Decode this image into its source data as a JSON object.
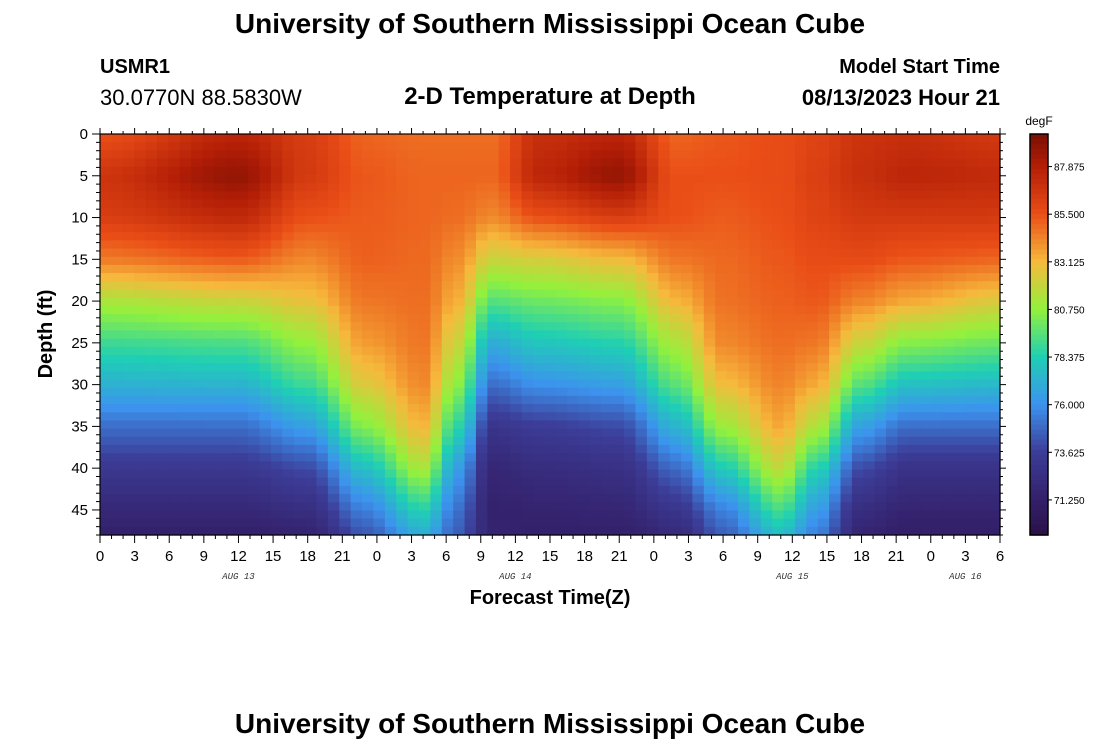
{
  "header": {
    "title": "University of Southern Mississippi Ocean Cube",
    "station_id": "USMR1",
    "station_coords": "30.0770N  88.5830W",
    "chart_title": "2-D Temperature at Depth",
    "start_label": "Model Start Time",
    "start_value": "08/13/2023 Hour 21"
  },
  "footer": {
    "title": "University of Southern Mississippi Ocean Cube"
  },
  "chart_data": {
    "type": "heatmap",
    "title": "2-D Temperature at Depth",
    "xlabel": "Forecast Time(Z)",
    "ylabel": "Depth (ft)",
    "x_hours_range": [
      0,
      78
    ],
    "x_ticks": [
      {
        "hour": 0,
        "label": "0"
      },
      {
        "hour": 3,
        "label": "3"
      },
      {
        "hour": 6,
        "label": "6"
      },
      {
        "hour": 9,
        "label": "9"
      },
      {
        "hour": 12,
        "label": "12"
      },
      {
        "hour": 15,
        "label": "15"
      },
      {
        "hour": 18,
        "label": "18"
      },
      {
        "hour": 21,
        "label": "21"
      },
      {
        "hour": 24,
        "label": "0"
      },
      {
        "hour": 27,
        "label": "3"
      },
      {
        "hour": 30,
        "label": "6"
      },
      {
        "hour": 33,
        "label": "9"
      },
      {
        "hour": 36,
        "label": "12"
      },
      {
        "hour": 39,
        "label": "15"
      },
      {
        "hour": 42,
        "label": "18"
      },
      {
        "hour": 45,
        "label": "21"
      },
      {
        "hour": 48,
        "label": "0"
      },
      {
        "hour": 51,
        "label": "3"
      },
      {
        "hour": 54,
        "label": "6"
      },
      {
        "hour": 57,
        "label": "9"
      },
      {
        "hour": 60,
        "label": "12"
      },
      {
        "hour": 63,
        "label": "15"
      },
      {
        "hour": 66,
        "label": "18"
      },
      {
        "hour": 69,
        "label": "21"
      },
      {
        "hour": 72,
        "label": "0"
      },
      {
        "hour": 75,
        "label": "3"
      },
      {
        "hour": 78,
        "label": "6"
      }
    ],
    "date_labels": [
      {
        "hour": 12,
        "label": "AUG 13"
      },
      {
        "hour": 36,
        "label": "AUG 14"
      },
      {
        "hour": 60,
        "label": "AUG 15"
      },
      {
        "hour": 75,
        "label": "AUG 16"
      }
    ],
    "y_depth_range": [
      0,
      48
    ],
    "y_ticks": [
      0,
      5,
      10,
      15,
      20,
      25,
      30,
      35,
      40,
      45
    ],
    "colorbar": {
      "unit": "degF",
      "range": [
        69.5,
        89.5
      ],
      "tick_values": [
        71.25,
        73.625,
        76.0,
        78.375,
        80.75,
        83.125,
        85.5,
        87.875
      ],
      "tick_labels": [
        "71.250",
        "73.625",
        "76.000",
        "78.375",
        "80.750",
        "83.125",
        "85.500",
        "87.875"
      ],
      "color_stops": [
        {
          "value": 69.5,
          "color": "#2a1248"
        },
        {
          "value": 71.25,
          "color": "#34206a"
        },
        {
          "value": 73.625,
          "color": "#3c3d98"
        },
        {
          "value": 76.0,
          "color": "#3c93ee"
        },
        {
          "value": 78.375,
          "color": "#1fcfb4"
        },
        {
          "value": 80.75,
          "color": "#93f13c"
        },
        {
          "value": 83.125,
          "color": "#f6b93c"
        },
        {
          "value": 85.5,
          "color": "#ea4e17"
        },
        {
          "value": 87.875,
          "color": "#b31e06"
        },
        {
          "value": 89.5,
          "color": "#7a0f04"
        }
      ]
    },
    "depth_profile_ft": [
      0,
      5,
      10,
      15,
      20,
      25,
      30,
      35,
      40,
      45,
      48
    ],
    "profiles": [
      {
        "hour": 0,
        "values": [
          85.5,
          86.8,
          86.3,
          84.5,
          81.3,
          79.0,
          77.2,
          75.0,
          73.2,
          71.9,
          71.2
        ]
      },
      {
        "hour": 12,
        "values": [
          87.5,
          88.8,
          87.3,
          85.2,
          82.0,
          79.3,
          77.3,
          75.0,
          73.2,
          71.9,
          71.2
        ]
      },
      {
        "hour": 18,
        "values": [
          86.3,
          86.5,
          85.5,
          84.2,
          82.8,
          80.8,
          79.0,
          76.5,
          74.0,
          72.4,
          71.5
        ]
      },
      {
        "hour": 23,
        "values": [
          85.0,
          85.3,
          85.2,
          85.1,
          84.6,
          83.8,
          82.5,
          80.5,
          77.8,
          75.5,
          74.3
        ]
      },
      {
        "hour": 28,
        "values": [
          84.8,
          85.0,
          85.0,
          84.9,
          84.8,
          84.6,
          84.2,
          83.2,
          81.3,
          78.5,
          77.0
        ]
      },
      {
        "hour": 31,
        "values": [
          84.8,
          85.0,
          84.8,
          84.1,
          83.3,
          82.0,
          80.6,
          78.6,
          76.4,
          75.0,
          74.5
        ]
      },
      {
        "hour": 34,
        "values": [
          84.8,
          85.0,
          84.2,
          82.0,
          79.5,
          77.0,
          75.0,
          73.0,
          71.8,
          71.4,
          71.6
        ]
      },
      {
        "hour": 38,
        "values": [
          87.0,
          87.5,
          85.5,
          82.3,
          80.0,
          78.0,
          76.0,
          73.5,
          72.3,
          71.5,
          71.3
        ]
      },
      {
        "hour": 45,
        "values": [
          87.5,
          88.8,
          86.3,
          83.0,
          80.5,
          78.5,
          76.5,
          74.0,
          72.6,
          71.7,
          71.3
        ]
      },
      {
        "hour": 50,
        "values": [
          85.0,
          85.5,
          85.5,
          84.6,
          83.2,
          81.3,
          79.6,
          77.3,
          74.9,
          73.0,
          72.0
        ]
      },
      {
        "hour": 54,
        "values": [
          85.3,
          85.5,
          85.2,
          84.9,
          84.7,
          84.2,
          83.0,
          81.0,
          78.2,
          75.5,
          74.5
        ]
      },
      {
        "hour": 59,
        "values": [
          85.6,
          85.6,
          85.5,
          85.3,
          85.1,
          84.8,
          84.3,
          83.5,
          81.8,
          79.2,
          77.6
        ]
      },
      {
        "hour": 62,
        "values": [
          86.0,
          86.2,
          86.0,
          85.6,
          85.3,
          84.6,
          83.5,
          81.5,
          78.6,
          76.5,
          75.5
        ]
      },
      {
        "hour": 66,
        "values": [
          86.8,
          87.0,
          86.5,
          85.7,
          84.3,
          82.0,
          79.5,
          76.5,
          74.0,
          72.3,
          71.6
        ]
      },
      {
        "hour": 70,
        "values": [
          87.0,
          87.5,
          86.5,
          85.3,
          83.5,
          80.5,
          77.8,
          75.0,
          72.8,
          71.6,
          71.1
        ]
      },
      {
        "hour": 78,
        "values": [
          86.5,
          87.3,
          86.5,
          85.0,
          82.5,
          80.0,
          77.5,
          75.0,
          72.8,
          71.6,
          71.1
        ]
      }
    ]
  }
}
